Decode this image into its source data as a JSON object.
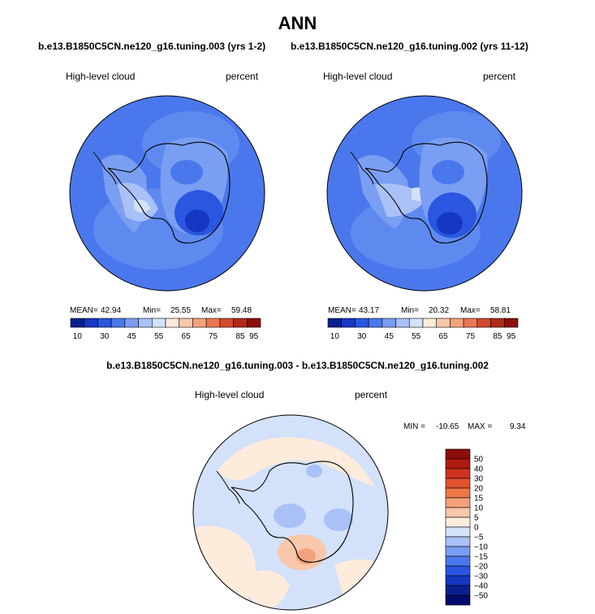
{
  "title": "ANN",
  "panel_left": {
    "case": "b.e13.B1850C5CN.ne120_g16.tuning.003 (yrs 1-2)",
    "variable": "High-level cloud",
    "units": "percent",
    "stats": {
      "mean_label": "MEAN=",
      "mean": "42.94",
      "min_label": "Min=",
      "min": "25.55",
      "max_label": "Max=",
      "max": "59.48"
    }
  },
  "panel_right": {
    "case": "b.e13.B1850C5CN.ne120_g16.tuning.002 (yrs 11-12)",
    "variable": "High-level cloud",
    "units": "percent",
    "stats": {
      "mean_label": "MEAN=",
      "mean": "43.17",
      "min_label": "Min=",
      "min": "20.32",
      "max_label": "Max=",
      "max": "58.81"
    }
  },
  "colorbar_abs": {
    "labels": [
      "10",
      "30",
      "45",
      "55",
      "65",
      "75",
      "85",
      "95"
    ],
    "colors": [
      "#0a1f8f",
      "#1537c2",
      "#2a56e0",
      "#4a78ec",
      "#7a9ef2",
      "#a9c1f6",
      "#d3e1fa",
      "#fdebdc",
      "#f9c7aa",
      "#f3a27e",
      "#ea7753",
      "#d44a2e",
      "#b02a18",
      "#8a0f08"
    ]
  },
  "diff_title": "b.e13.B1850C5CN.ne120_g16.tuning.003 - b.e13.B1850C5CN.ne120_g16.tuning.002",
  "panel_diff": {
    "variable": "High-level cloud",
    "units": "percent",
    "minmax": {
      "min_label": "MIN =",
      "min": "-10.65",
      "max_label": "MAX =",
      "max": "9.34"
    }
  },
  "colorbar_diff": {
    "labels": [
      "50",
      "40",
      "30",
      "20",
      "15",
      "10",
      "5",
      "0",
      "−5",
      "−10",
      "−15",
      "−20",
      "−30",
      "−40",
      "−50"
    ],
    "colors": [
      "#8a0f08",
      "#b01a10",
      "#cf3320",
      "#e2522f",
      "#ef7646",
      "#f5a07b",
      "#f9c7aa",
      "#fdebdc",
      "#d3e1fa",
      "#a9c1f6",
      "#7a9ef2",
      "#4a78ec",
      "#2a56e0",
      "#1537c2",
      "#0a1f8f",
      "#000a6a"
    ]
  }
}
